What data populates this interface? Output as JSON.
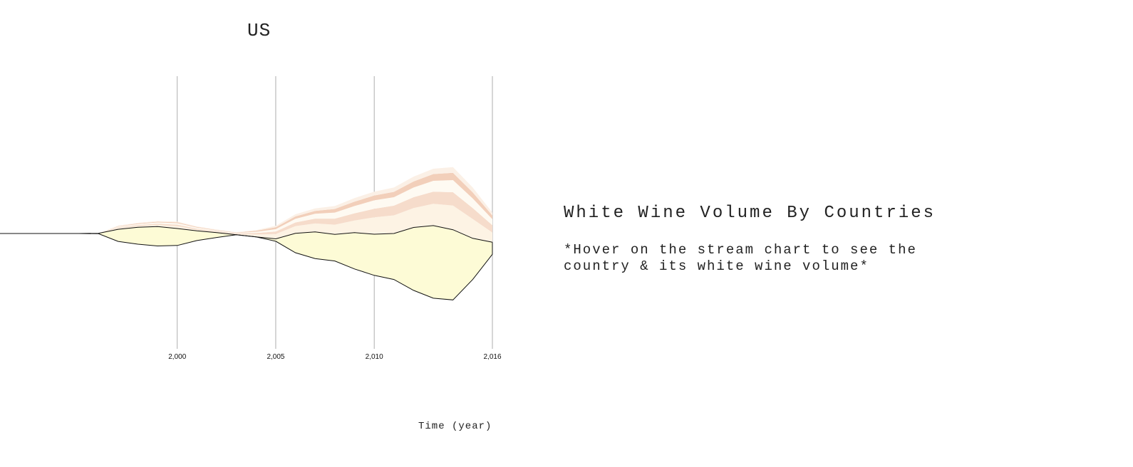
{
  "page": {
    "country": "US",
    "info_title": "White Wine Volume By Countries",
    "info_hint": "*Hover on the stream chart to see the country & its white wine volume*"
  },
  "chart_data": {
    "type": "area",
    "subtype": "streamgraph",
    "title": "US",
    "xlabel": "Time (year)",
    "ylabel": "",
    "xlim": [
      1991,
      2016
    ],
    "x_ticks": [
      2000,
      2005,
      2010,
      2016
    ],
    "x_tick_labels": [
      "2,000",
      "2,005",
      "2,010",
      "2,016"
    ],
    "grid": "vertical lines at tick years",
    "highlighted_series_index": 0,
    "x": [
      1991,
      1992,
      1993,
      1994,
      1995,
      1996,
      1997,
      1998,
      1999,
      2000,
      2001,
      2002,
      2003,
      2004,
      2005,
      2006,
      2007,
      2008,
      2009,
      2010,
      2011,
      2012,
      2013,
      2014,
      2015,
      2016
    ],
    "series": [
      {
        "color": "#fdfbd6",
        "values": [
          0,
          0,
          0,
          0,
          0,
          0.2,
          5,
          7,
          8,
          7,
          4,
          2,
          0,
          0,
          1,
          8,
          11,
          11,
          15,
          17,
          19,
          26,
          30,
          29,
          17,
          5
        ]
      },
      {
        "color": "#fdf3e4",
        "values": [
          0,
          0,
          0,
          0,
          0,
          0,
          0.5,
          0.5,
          0.7,
          1,
          0.5,
          0.3,
          0.2,
          1,
          2,
          3,
          3.5,
          4,
          5,
          7,
          7.5,
          8,
          9,
          10,
          8,
          4
        ]
      },
      {
        "color": "#f6dccb",
        "values": [
          0,
          0,
          0,
          0,
          0,
          0,
          0.3,
          0.4,
          0.5,
          0.6,
          0.4,
          0.3,
          0.3,
          0.6,
          1,
          1.5,
          2,
          2.5,
          3,
          3.5,
          4,
          4.5,
          5,
          5.5,
          4.5,
          3
        ]
      },
      {
        "color": "#fefaf2",
        "values": [
          0,
          0,
          0,
          0,
          0,
          0,
          0.3,
          0.4,
          0.5,
          0.6,
          0.4,
          0.3,
          0.2,
          0.5,
          1,
          1.5,
          2,
          2.5,
          3,
          3.5,
          3.5,
          4,
          4.5,
          5,
          4,
          2.5
        ]
      },
      {
        "color": "#f2cfba",
        "values": [
          0,
          0,
          0,
          0,
          0,
          0,
          0.2,
          0.3,
          0.3,
          0.4,
          0.3,
          0.2,
          0.2,
          0.4,
          0.8,
          1,
          1.2,
          1.5,
          1.8,
          2,
          2.2,
          2.5,
          2.8,
          3,
          2.5,
          1.5
        ]
      },
      {
        "color": "#fbf0e6",
        "values": [
          0,
          0,
          0,
          0,
          0,
          0,
          0.2,
          0.2,
          0.3,
          0.3,
          0.2,
          0.2,
          0.1,
          0.3,
          0.6,
          0.9,
          1,
          1.2,
          1.5,
          1.6,
          1.8,
          2,
          2.2,
          2.4,
          2,
          1.2
        ]
      }
    ]
  }
}
